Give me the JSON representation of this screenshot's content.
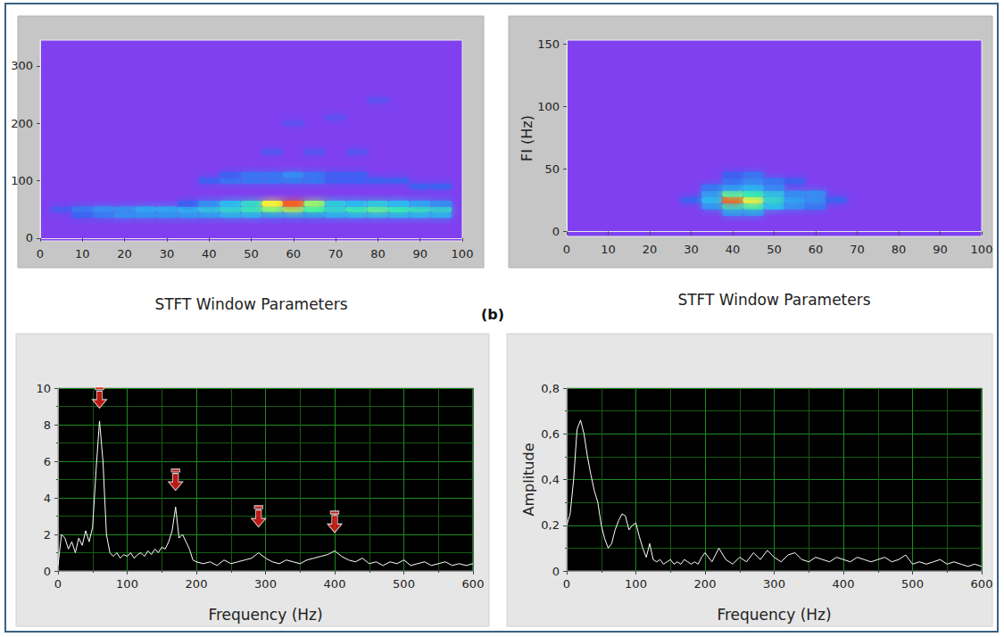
{
  "figure_label": "(b)",
  "chart_data": [
    {
      "type": "heatmap",
      "x_label": "STFT Window Parameters",
      "xlim": [
        0,
        100
      ],
      "xticks": [
        0,
        10,
        20,
        30,
        40,
        50,
        60,
        70,
        80,
        90,
        100
      ],
      "ylim": [
        -5,
        345
      ],
      "yticks": [
        0,
        100,
        200,
        300
      ],
      "grid": false,
      "zlim": [
        0,
        1
      ],
      "cells": [
        [
          5,
          50,
          0.15
        ],
        [
          10,
          40,
          0.2
        ],
        [
          10,
          50,
          0.25
        ],
        [
          15,
          40,
          0.25
        ],
        [
          15,
          50,
          0.3
        ],
        [
          20,
          40,
          0.3
        ],
        [
          20,
          50,
          0.3
        ],
        [
          25,
          40,
          0.3
        ],
        [
          25,
          50,
          0.35
        ],
        [
          30,
          40,
          0.3
        ],
        [
          30,
          50,
          0.35
        ],
        [
          35,
          40,
          0.3
        ],
        [
          35,
          50,
          0.4
        ],
        [
          35,
          60,
          0.2
        ],
        [
          40,
          40,
          0.3
        ],
        [
          40,
          50,
          0.45
        ],
        [
          40,
          60,
          0.3
        ],
        [
          40,
          100,
          0.2
        ],
        [
          45,
          40,
          0.35
        ],
        [
          45,
          50,
          0.5
        ],
        [
          45,
          60,
          0.4
        ],
        [
          45,
          100,
          0.25
        ],
        [
          45,
          110,
          0.2
        ],
        [
          50,
          40,
          0.35
        ],
        [
          50,
          50,
          0.55
        ],
        [
          50,
          60,
          0.5
        ],
        [
          50,
          100,
          0.25
        ],
        [
          50,
          110,
          0.25
        ],
        [
          55,
          40,
          0.3
        ],
        [
          55,
          50,
          0.65
        ],
        [
          55,
          60,
          0.8
        ],
        [
          55,
          100,
          0.25
        ],
        [
          55,
          110,
          0.25
        ],
        [
          60,
          40,
          0.3
        ],
        [
          60,
          50,
          0.7
        ],
        [
          60,
          60,
          0.95
        ],
        [
          60,
          100,
          0.25
        ],
        [
          60,
          110,
          0.3
        ],
        [
          65,
          40,
          0.3
        ],
        [
          65,
          50,
          0.6
        ],
        [
          65,
          60,
          0.7
        ],
        [
          65,
          100,
          0.25
        ],
        [
          65,
          110,
          0.25
        ],
        [
          70,
          40,
          0.35
        ],
        [
          70,
          50,
          0.5
        ],
        [
          70,
          60,
          0.45
        ],
        [
          70,
          100,
          0.2
        ],
        [
          70,
          110,
          0.2
        ],
        [
          75,
          40,
          0.35
        ],
        [
          75,
          50,
          0.6
        ],
        [
          75,
          60,
          0.4
        ],
        [
          75,
          100,
          0.2
        ],
        [
          75,
          110,
          0.2
        ],
        [
          80,
          40,
          0.35
        ],
        [
          80,
          50,
          0.65
        ],
        [
          80,
          60,
          0.45
        ],
        [
          80,
          100,
          0.2
        ],
        [
          85,
          40,
          0.35
        ],
        [
          85,
          50,
          0.6
        ],
        [
          85,
          60,
          0.4
        ],
        [
          85,
          100,
          0.2
        ],
        [
          90,
          40,
          0.35
        ],
        [
          90,
          50,
          0.55
        ],
        [
          90,
          60,
          0.35
        ],
        [
          90,
          90,
          0.2
        ],
        [
          95,
          40,
          0.35
        ],
        [
          95,
          50,
          0.5
        ],
        [
          95,
          60,
          0.3
        ],
        [
          95,
          90,
          0.2
        ],
        [
          55,
          150,
          0.12
        ],
        [
          65,
          150,
          0.12
        ],
        [
          75,
          150,
          0.12
        ],
        [
          60,
          200,
          0.1
        ],
        [
          70,
          210,
          0.1
        ],
        [
          80,
          240,
          0.1
        ]
      ]
    },
    {
      "type": "heatmap",
      "x_label": "STFT Window Parameters",
      "y_label": "FI (Hz)",
      "xlim": [
        0,
        100
      ],
      "xticks": [
        0,
        10,
        20,
        30,
        40,
        50,
        60,
        70,
        80,
        90,
        100
      ],
      "ylim": [
        -4,
        153
      ],
      "yticks": [
        0,
        50,
        100,
        150
      ],
      "grid": false,
      "zlim": [
        0,
        1
      ],
      "cells": [
        [
          30,
          25,
          0.2
        ],
        [
          35,
          20,
          0.3
        ],
        [
          35,
          25,
          0.4
        ],
        [
          35,
          30,
          0.35
        ],
        [
          35,
          35,
          0.25
        ],
        [
          40,
          15,
          0.3
        ],
        [
          40,
          20,
          0.5
        ],
        [
          40,
          25,
          0.95
        ],
        [
          40,
          30,
          0.65
        ],
        [
          40,
          35,
          0.35
        ],
        [
          40,
          40,
          0.25
        ],
        [
          40,
          45,
          0.2
        ],
        [
          45,
          15,
          0.3
        ],
        [
          45,
          20,
          0.55
        ],
        [
          45,
          25,
          0.8
        ],
        [
          45,
          30,
          0.6
        ],
        [
          45,
          35,
          0.4
        ],
        [
          45,
          40,
          0.3
        ],
        [
          45,
          45,
          0.25
        ],
        [
          50,
          20,
          0.4
        ],
        [
          50,
          25,
          0.5
        ],
        [
          50,
          30,
          0.45
        ],
        [
          50,
          35,
          0.3
        ],
        [
          50,
          40,
          0.25
        ],
        [
          55,
          20,
          0.3
        ],
        [
          55,
          25,
          0.35
        ],
        [
          55,
          30,
          0.3
        ],
        [
          55,
          40,
          0.2
        ],
        [
          60,
          20,
          0.25
        ],
        [
          60,
          25,
          0.3
        ],
        [
          60,
          30,
          0.3
        ],
        [
          65,
          25,
          0.2
        ]
      ]
    },
    {
      "type": "line",
      "x_label": "Frequency (Hz)",
      "xlim": [
        0,
        600
      ],
      "xticks": [
        0,
        100,
        200,
        300,
        400,
        500,
        600
      ],
      "ylim": [
        0,
        10
      ],
      "yticks": [
        0,
        2,
        4,
        6,
        8,
        10
      ],
      "grid": true,
      "color": "#ffffff",
      "x": [
        0,
        5,
        10,
        15,
        20,
        25,
        30,
        35,
        40,
        45,
        50,
        55,
        60,
        65,
        70,
        75,
        80,
        85,
        90,
        95,
        100,
        105,
        110,
        115,
        120,
        125,
        130,
        135,
        140,
        145,
        150,
        155,
        160,
        165,
        170,
        175,
        180,
        185,
        190,
        195,
        200,
        210,
        220,
        230,
        240,
        250,
        260,
        270,
        280,
        290,
        300,
        310,
        320,
        330,
        340,
        350,
        360,
        370,
        380,
        390,
        400,
        410,
        420,
        430,
        440,
        450,
        460,
        470,
        480,
        490,
        500,
        510,
        520,
        530,
        540,
        550,
        560,
        570,
        580,
        590,
        600
      ],
      "values": [
        0.3,
        2.0,
        1.8,
        1.2,
        1.6,
        1.0,
        1.8,
        1.4,
        2.2,
        1.6,
        2.4,
        5.5,
        8.2,
        6.0,
        2.0,
        1.0,
        0.8,
        1.0,
        0.7,
        0.9,
        0.8,
        1.0,
        0.7,
        0.9,
        1.0,
        0.8,
        1.1,
        0.9,
        1.2,
        1.0,
        1.3,
        1.2,
        1.6,
        2.2,
        3.5,
        1.8,
        2.0,
        1.6,
        1.2,
        0.6,
        0.5,
        0.4,
        0.5,
        0.3,
        0.6,
        0.4,
        0.5,
        0.6,
        0.7,
        1.0,
        0.7,
        0.5,
        0.4,
        0.6,
        0.5,
        0.4,
        0.6,
        0.7,
        0.8,
        0.9,
        1.1,
        0.8,
        0.6,
        0.5,
        0.7,
        0.4,
        0.5,
        0.3,
        0.5,
        0.4,
        0.6,
        0.3,
        0.4,
        0.5,
        0.3,
        0.4,
        0.5,
        0.3,
        0.4,
        0.3,
        0.4
      ],
      "arrows": [
        {
          "x": 60,
          "y": 8.9
        },
        {
          "x": 170,
          "y": 4.4
        },
        {
          "x": 290,
          "y": 2.4
        },
        {
          "x": 400,
          "y": 2.1
        }
      ]
    },
    {
      "type": "line",
      "x_label": "Frequency (Hz)",
      "y_label": "Amplitude",
      "xlim": [
        0,
        600
      ],
      "xticks": [
        0,
        100,
        200,
        300,
        400,
        500,
        600
      ],
      "ylim": [
        0,
        0.8
      ],
      "yticks": [
        0,
        {
          "value": 0.2,
          "label": "0,2"
        },
        {
          "value": 0.4,
          "label": "0,4"
        },
        {
          "value": 0.6,
          "label": "0,6"
        },
        {
          "value": 0.8,
          "label": "0,8"
        }
      ],
      "grid": true,
      "color": "#ffffff",
      "x": [
        0,
        5,
        10,
        15,
        20,
        25,
        30,
        35,
        40,
        45,
        50,
        55,
        60,
        65,
        70,
        75,
        80,
        85,
        90,
        95,
        100,
        105,
        110,
        115,
        120,
        125,
        130,
        135,
        140,
        145,
        150,
        155,
        160,
        165,
        170,
        175,
        180,
        185,
        190,
        195,
        200,
        210,
        220,
        230,
        240,
        250,
        260,
        270,
        280,
        290,
        300,
        310,
        320,
        330,
        340,
        350,
        360,
        370,
        380,
        390,
        400,
        410,
        420,
        430,
        440,
        450,
        460,
        470,
        480,
        490,
        500,
        510,
        520,
        530,
        540,
        550,
        560,
        570,
        580,
        590,
        600
      ],
      "values": [
        0.2,
        0.25,
        0.4,
        0.62,
        0.66,
        0.6,
        0.5,
        0.42,
        0.35,
        0.3,
        0.2,
        0.14,
        0.1,
        0.12,
        0.18,
        0.22,
        0.25,
        0.24,
        0.18,
        0.2,
        0.21,
        0.15,
        0.1,
        0.06,
        0.12,
        0.05,
        0.04,
        0.05,
        0.03,
        0.04,
        0.05,
        0.03,
        0.04,
        0.03,
        0.05,
        0.04,
        0.03,
        0.04,
        0.03,
        0.06,
        0.08,
        0.04,
        0.1,
        0.05,
        0.03,
        0.06,
        0.04,
        0.08,
        0.05,
        0.09,
        0.06,
        0.04,
        0.07,
        0.08,
        0.05,
        0.04,
        0.06,
        0.05,
        0.04,
        0.06,
        0.05,
        0.04,
        0.06,
        0.05,
        0.04,
        0.05,
        0.06,
        0.04,
        0.05,
        0.07,
        0.03,
        0.04,
        0.03,
        0.04,
        0.05,
        0.03,
        0.04,
        0.03,
        0.02,
        0.03,
        0.02
      ]
    }
  ]
}
